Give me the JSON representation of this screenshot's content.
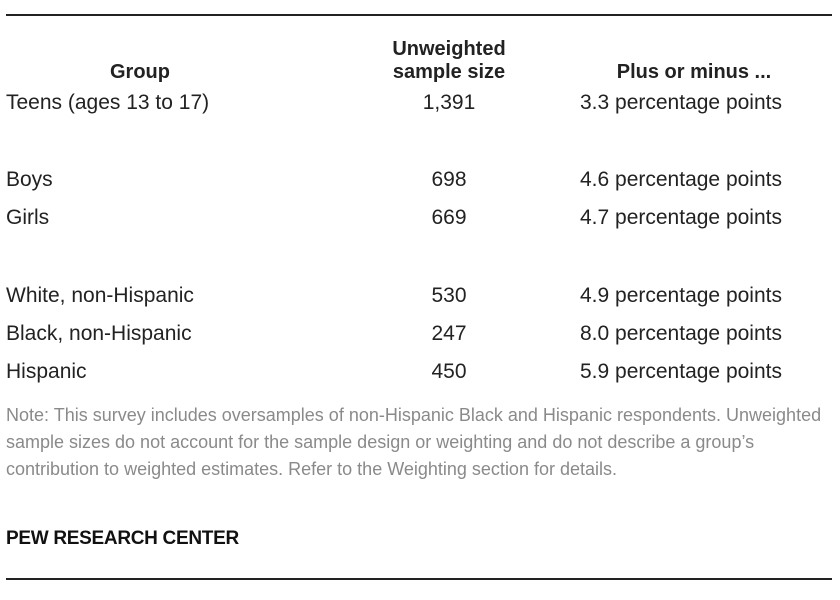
{
  "table": {
    "headers": {
      "group": "Group",
      "sample_size_line1": "Unweighted",
      "sample_size_line2": "sample size",
      "margin": "Plus or minus ..."
    },
    "rows": [
      {
        "group": "Teens (ages 13 to 17)",
        "sample_size": "1,391",
        "margin": "3.3 percentage points"
      },
      {
        "group": "Boys",
        "sample_size": "698",
        "margin": "4.6 percentage points"
      },
      {
        "group": "Girls",
        "sample_size": "669",
        "margin": "4.7 percentage points"
      },
      {
        "group": "White, non-Hispanic",
        "sample_size": "530",
        "margin": "4.9 percentage points"
      },
      {
        "group": "Black, non-Hispanic",
        "sample_size": "247",
        "margin": "8.0 percentage points"
      },
      {
        "group": "Hispanic",
        "sample_size": "450",
        "margin": "5.9 percentage points"
      }
    ]
  },
  "note": "Note: This survey includes oversamples of non-Hispanic Black and Hispanic respondents. Unweighted sample sizes do not account for the sample design or weighting and do not describe a group’s contribution to weighted estimates. Refer to the Weighting section for details.",
  "source": "PEW RESEARCH CENTER"
}
